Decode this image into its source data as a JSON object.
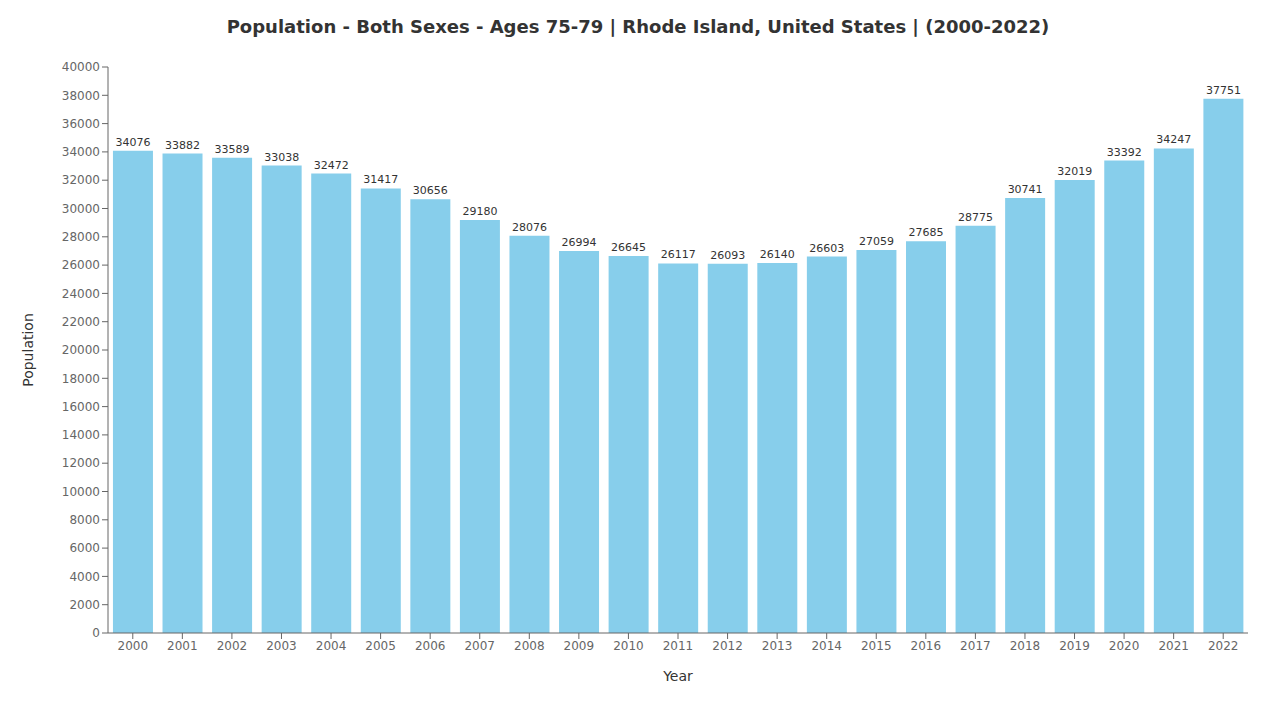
{
  "chart_data": {
    "type": "bar",
    "title": "Population - Both Sexes - Ages 75-79 | Rhode Island, United States |  (2000-2022)",
    "x_label": "Year",
    "y_label": "Population",
    "categories": [
      "2000",
      "2001",
      "2002",
      "2003",
      "2004",
      "2005",
      "2006",
      "2007",
      "2008",
      "2009",
      "2010",
      "2011",
      "2012",
      "2013",
      "2014",
      "2015",
      "2016",
      "2017",
      "2018",
      "2019",
      "2020",
      "2021",
      "2022"
    ],
    "values": [
      34076,
      33882,
      33589,
      33038,
      32472,
      31417,
      30656,
      29180,
      28076,
      26994,
      26645,
      26117,
      26093,
      26140,
      26603,
      27059,
      27685,
      28775,
      30741,
      32019,
      33392,
      34247,
      37751
    ],
    "color": "#87ceeb",
    "ylim": [
      0,
      40000
    ],
    "yticks": [
      0,
      2000,
      4000,
      6000,
      8000,
      10000,
      12000,
      14000,
      16000,
      18000,
      20000,
      22000,
      24000,
      26000,
      28000,
      30000,
      32000,
      34000,
      36000,
      38000,
      40000
    ],
    "grid": false,
    "data_labels": true
  }
}
